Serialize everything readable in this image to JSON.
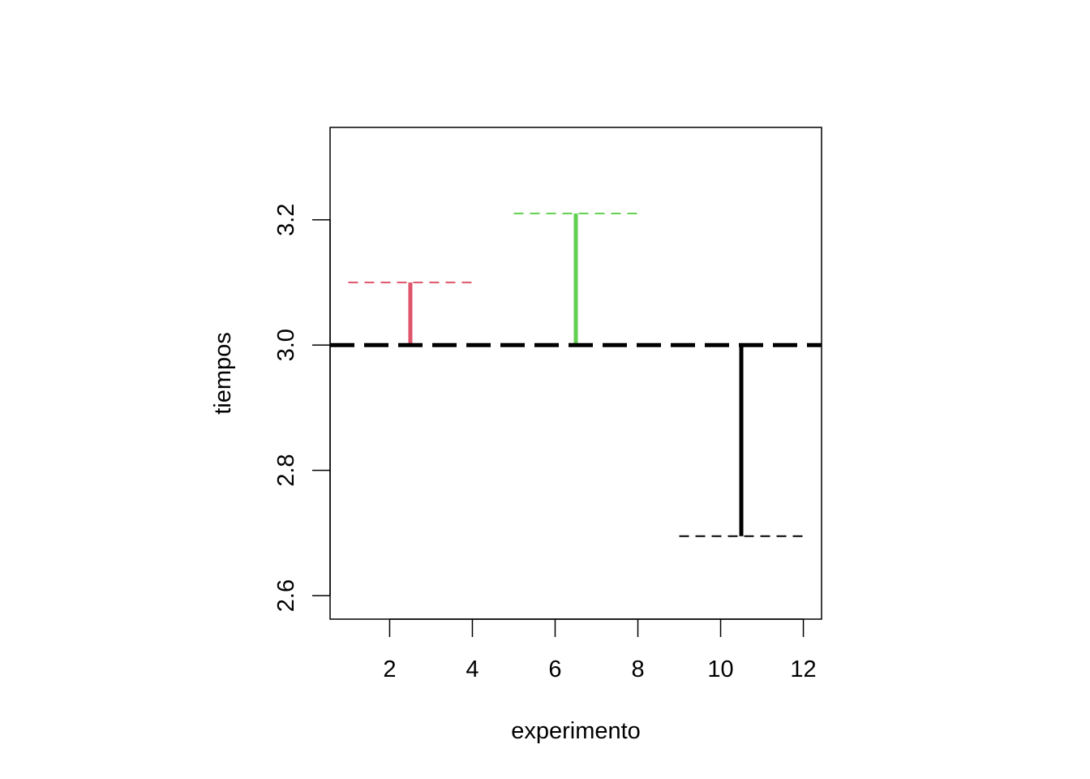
{
  "chart_data": {
    "type": "line",
    "title": "",
    "xlabel": "experimento",
    "ylabel": "tiempos",
    "xlim": [
      0.56,
      12.44
    ],
    "ylim": [
      2.5625,
      3.3475
    ],
    "xticks": [
      2,
      4,
      6,
      8,
      10,
      12
    ],
    "yticks": [
      2.6,
      2.8,
      3.0,
      3.2
    ],
    "xtick_labels": [
      "2",
      "4",
      "6",
      "8",
      "10",
      "12"
    ],
    "ytick_labels": [
      "2.6",
      "2.8",
      "3.0",
      "3.2"
    ],
    "grid": false,
    "reference_line": {
      "y": 3.0,
      "color": "#000000",
      "style": "dashed"
    },
    "series": [
      {
        "color": "#DF536B",
        "mean": 3.1,
        "x_range": [
          1,
          4
        ],
        "x": 2.5
      },
      {
        "color": "#61D04F",
        "mean": 3.21,
        "x_range": [
          5,
          8
        ],
        "x": 6.5
      },
      {
        "color": "#000000",
        "mean": 2.695,
        "x_range": [
          9,
          12
        ],
        "x": 10.5
      }
    ]
  }
}
